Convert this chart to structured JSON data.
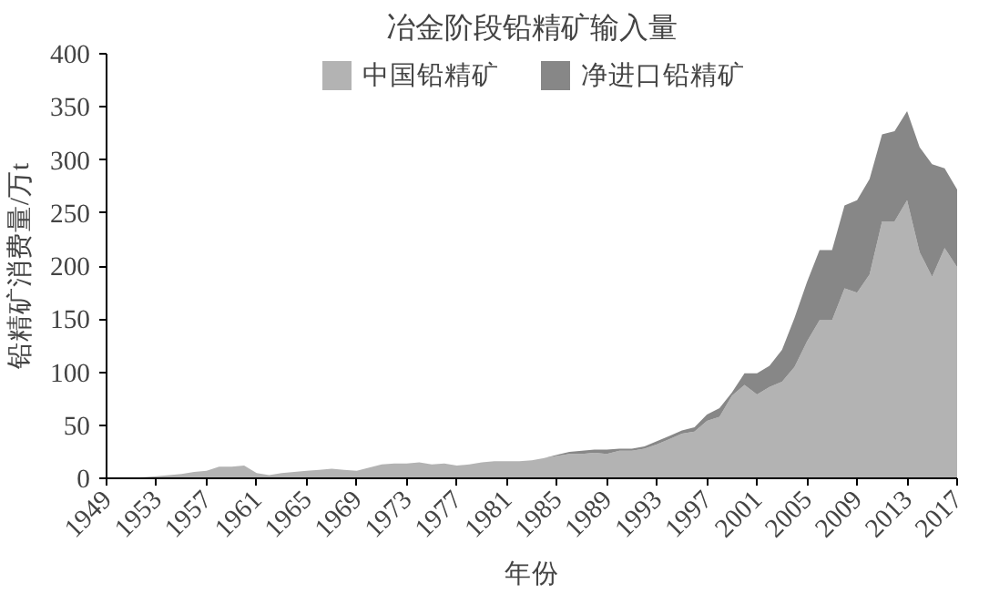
{
  "chart_data": {
    "type": "area",
    "title": "冶金阶段铅精矿输入量",
    "xlabel": "年份",
    "ylabel": "铅精矿消费量/万t",
    "stacked": true,
    "legend": "top",
    "x": [
      1949,
      1950,
      1951,
      1952,
      1953,
      1954,
      1955,
      1956,
      1957,
      1958,
      1959,
      1960,
      1961,
      1962,
      1963,
      1964,
      1965,
      1966,
      1967,
      1968,
      1969,
      1970,
      1971,
      1972,
      1973,
      1974,
      1975,
      1976,
      1977,
      1978,
      1979,
      1980,
      1981,
      1982,
      1983,
      1984,
      1985,
      1986,
      1987,
      1988,
      1989,
      1990,
      1991,
      1992,
      1993,
      1994,
      1995,
      1996,
      1997,
      1998,
      1999,
      2000,
      2001,
      2002,
      2003,
      2004,
      2005,
      2006,
      2007,
      2008,
      2009,
      2010,
      2011,
      2012,
      2013,
      2014,
      2015,
      2016,
      2017
    ],
    "xlim": [
      1949,
      2017
    ],
    "ylim": [
      0,
      400
    ],
    "xticks": [
      1949,
      1953,
      1957,
      1961,
      1965,
      1969,
      1973,
      1977,
      1981,
      1985,
      1989,
      1993,
      1997,
      2001,
      2005,
      2009,
      2013,
      2017
    ],
    "yticks": [
      0,
      50,
      100,
      150,
      200,
      250,
      300,
      350,
      400
    ],
    "series": [
      {
        "name": "中国铅精矿",
        "color": "#b3b3b3",
        "values": [
          0,
          0,
          0.5,
          1,
          2,
          3,
          4,
          6,
          7,
          11,
          11,
          12,
          5,
          3,
          5,
          6,
          7,
          8,
          9,
          8,
          7,
          10,
          13,
          14,
          14,
          15,
          13,
          14,
          12,
          13,
          15,
          16,
          16,
          16,
          17,
          19,
          21,
          23,
          23,
          24,
          23,
          26,
          26,
          28,
          32,
          37,
          42,
          44,
          54,
          58,
          78,
          88,
          79,
          86,
          91,
          105,
          129,
          149,
          149,
          179,
          175,
          192,
          242,
          242,
          262,
          213,
          190,
          217,
          199
        ]
      },
      {
        "name": "净进口铅精矿",
        "color": "#878787",
        "values": [
          0,
          0,
          0,
          0,
          0,
          0,
          0,
          0,
          0,
          0,
          0,
          0,
          0,
          0,
          0,
          0,
          0,
          0,
          0,
          0,
          0,
          0,
          0,
          0,
          0,
          0,
          0,
          0,
          0,
          0,
          0,
          0,
          0,
          0,
          0,
          0,
          1,
          2,
          3,
          3,
          4,
          2,
          2,
          2,
          3,
          3,
          3,
          4,
          6,
          8,
          3,
          11,
          20,
          20,
          30,
          46,
          56,
          66,
          66,
          78,
          87,
          90,
          82,
          85,
          84,
          99,
          106,
          75,
          73
        ]
      }
    ]
  }
}
